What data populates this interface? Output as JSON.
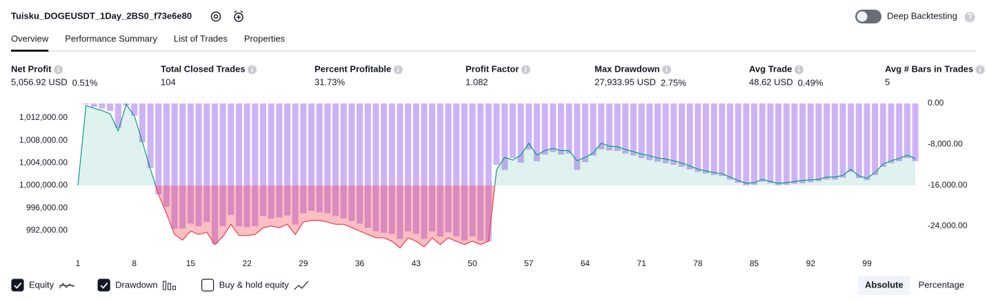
{
  "header": {
    "title": "Tuisku_DOGEUSDT_1Day_2BS0_f73e6e80",
    "toggle_label": "Deep Backtesting",
    "toggle_on": false
  },
  "tabs": {
    "items": [
      "Overview",
      "Performance Summary",
      "List of Trades",
      "Properties"
    ],
    "active": 0
  },
  "metrics": [
    {
      "label": "Net Profit",
      "value": "5,056.92 USD",
      "percent": "0.51%",
      "color": "#089981"
    },
    {
      "label": "Total Closed Trades",
      "value": "104",
      "color": "#131722"
    },
    {
      "label": "Percent Profitable",
      "value": "31.73%",
      "color": "#089981"
    },
    {
      "label": "Profit Factor",
      "value": "1.082",
      "color": "#089981"
    },
    {
      "label": "Max Drawdown",
      "value": "27,933.95 USD",
      "percent": "2.75%",
      "color": "#f23645"
    },
    {
      "label": "Avg Trade",
      "value": "48.62 USD",
      "percent": "0.49%",
      "color": "#089981"
    },
    {
      "label": "Avg # Bars in Trades",
      "value": "5",
      "color": "#131722"
    }
  ],
  "chart_data": {
    "type": "combo",
    "grid": false,
    "x": [
      1,
      2,
      3,
      4,
      5,
      6,
      7,
      8,
      9,
      10,
      11,
      12,
      13,
      14,
      15,
      16,
      17,
      18,
      19,
      20,
      21,
      22,
      23,
      24,
      25,
      26,
      27,
      28,
      29,
      30,
      31,
      32,
      33,
      34,
      35,
      36,
      37,
      38,
      39,
      40,
      41,
      42,
      43,
      44,
      45,
      46,
      47,
      48,
      49,
      50,
      51,
      52,
      53,
      54,
      55,
      56,
      57,
      58,
      59,
      60,
      61,
      62,
      63,
      64,
      65,
      66,
      67,
      68,
      69,
      70,
      71,
      72,
      73,
      74,
      75,
      76,
      77,
      78,
      79,
      80,
      81,
      82,
      83,
      84,
      85,
      86,
      87,
      88,
      89,
      90,
      91,
      92,
      93,
      94,
      95,
      96,
      97,
      98,
      99,
      100,
      101,
      102,
      103,
      104,
      105
    ],
    "xlim": [
      1,
      105
    ],
    "xticks": [
      1,
      8,
      15,
      22,
      29,
      36,
      43,
      50,
      57,
      64,
      71,
      78,
      85,
      92,
      99
    ],
    "ylim": [
      987630,
      1014570
    ],
    "yticks": [
      {
        "value": 992000,
        "label": "992,000.00"
      },
      {
        "value": 996000,
        "label": "996,000.00"
      },
      {
        "value": 1000000,
        "label": "1,000,000.00"
      },
      {
        "value": 1004000,
        "label": "1,004,000.00"
      },
      {
        "value": 1008000,
        "label": "1,008,000.00"
      },
      {
        "value": 1012000,
        "label": "1,012,000.00"
      }
    ],
    "y2lim": [
      -29660,
      0
    ],
    "y2ticks": [
      {
        "value": 0,
        "label": "0.00"
      },
      {
        "value": -8000,
        "label": "-8,000.00"
      },
      {
        "value": -16000,
        "label": "-16,000.00"
      },
      {
        "value": -24000,
        "label": "-24,000.00"
      }
    ],
    "series": [
      {
        "name": "Equity",
        "type": "line",
        "axis": "y",
        "color": "#089981",
        "negative_color": "#f23645",
        "visible": true,
        "values": [
          1000000,
          1014200,
          1013700,
          1013300,
          1012700,
          1009700,
          1014400,
          1012400,
          1007800,
          1002900,
          998400,
          995000,
          991300,
          990300,
          991900,
          991300,
          991700,
          989500,
          990900,
          993100,
          991100,
          991100,
          991300,
          992500,
          992800,
          992500,
          993100,
          991300,
          993500,
          993800,
          993800,
          993500,
          993100,
          993100,
          992500,
          991900,
          991300,
          990700,
          990700,
          990100,
          988900,
          990700,
          990100,
          989100,
          990700,
          989500,
          990700,
          990100,
          989500,
          990100,
          989500,
          990100,
          1002800,
          1005000,
          1004500,
          1005400,
          1007500,
          1005400,
          1006200,
          1006600,
          1006200,
          1006200,
          1004400,
          1005000,
          1005800,
          1007500,
          1007000,
          1006900,
          1006400,
          1006000,
          1005600,
          1005300,
          1004900,
          1004700,
          1004400,
          1004000,
          1003500,
          1002900,
          1002600,
          1002300,
          1002100,
          1001500,
          1000900,
          1000400,
          1000500,
          1001100,
          1000700,
          1000400,
          1000500,
          1000700,
          1000900,
          1001000,
          1001100,
          1001500,
          1001500,
          1001800,
          1002900,
          1001700,
          1001300,
          1002300,
          1003800,
          1004400,
          1004800,
          1005400,
          1004800
        ]
      },
      {
        "name": "Drawdown",
        "type": "bar",
        "axis": "y2",
        "color": "#ceb2f6",
        "visible": true,
        "values": [
          0,
          -200,
          -700,
          -1000,
          -1500,
          -4800,
          -400,
          -2400,
          -7600,
          -12600,
          -17800,
          -20200,
          -24500,
          -24500,
          -23500,
          -24000,
          -23200,
          -27500,
          -24000,
          -21800,
          -24000,
          -24200,
          -24000,
          -22000,
          -22500,
          -22300,
          -21900,
          -23700,
          -21500,
          -21000,
          -21300,
          -21500,
          -22000,
          -22500,
          -23000,
          -23500,
          -24300,
          -25000,
          -25300,
          -25500,
          -26500,
          -25000,
          -25500,
          -26500,
          -25000,
          -26000,
          -25200,
          -26000,
          -26800,
          -26000,
          -26800,
          -27000,
          -12000,
          -13000,
          -10700,
          -11600,
          -9000,
          -11300,
          -10000,
          -9500,
          -10000,
          -9800,
          -13000,
          -11500,
          -10200,
          -9000,
          -9200,
          -9300,
          -9800,
          -10200,
          -10700,
          -11100,
          -11400,
          -11700,
          -12000,
          -12400,
          -12900,
          -13400,
          -13700,
          -14000,
          -14200,
          -14900,
          -15500,
          -16000,
          -15900,
          -15300,
          -15600,
          -16000,
          -15900,
          -15700,
          -15600,
          -15400,
          -15200,
          -14900,
          -14900,
          -14500,
          -13400,
          -14600,
          -15000,
          -14000,
          -12400,
          -11700,
          -11300,
          -10700,
          -11300
        ]
      }
    ],
    "legend_options": [
      {
        "name": "Buy & hold equity",
        "checked": false
      }
    ],
    "scale_modes": [
      "Absolute",
      "Percentage"
    ],
    "scale_mode": 0
  }
}
